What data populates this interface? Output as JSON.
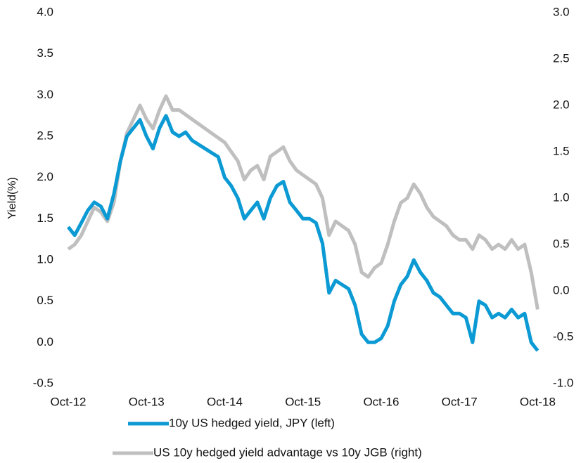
{
  "chart_data": {
    "type": "line",
    "ylabel": "Yield(%)",
    "x": [
      2012.75,
      2012.833,
      2012.917,
      2013,
      2013.083,
      2013.167,
      2013.25,
      2013.333,
      2013.417,
      2013.5,
      2013.583,
      2013.667,
      2013.75,
      2013.833,
      2013.917,
      2014,
      2014.083,
      2014.167,
      2014.25,
      2014.333,
      2014.417,
      2014.5,
      2014.583,
      2014.667,
      2014.75,
      2014.833,
      2014.917,
      2015,
      2015.083,
      2015.167,
      2015.25,
      2015.333,
      2015.417,
      2015.5,
      2015.583,
      2015.667,
      2015.75,
      2015.833,
      2015.917,
      2016,
      2016.083,
      2016.167,
      2016.25,
      2016.333,
      2016.417,
      2016.5,
      2016.583,
      2016.667,
      2016.75,
      2016.833,
      2016.917,
      2017,
      2017.083,
      2017.167,
      2017.25,
      2017.333,
      2017.417,
      2017.5,
      2017.583,
      2017.667,
      2017.75,
      2017.833,
      2017.917,
      2018,
      2018.083,
      2018.167,
      2018.25,
      2018.333,
      2018.417,
      2018.5,
      2018.583,
      2018.667,
      2018.75
    ],
    "series": [
      {
        "name": "10y US hedged yield, JPY (left)",
        "color": "#0b9ad3",
        "axis": "y",
        "values": [
          1.4,
          1.3,
          1.45,
          1.6,
          1.7,
          1.65,
          1.5,
          1.8,
          2.2,
          2.5,
          2.6,
          2.7,
          2.5,
          2.35,
          2.6,
          2.75,
          2.55,
          2.5,
          2.55,
          2.45,
          2.4,
          2.35,
          2.3,
          2.25,
          2.0,
          1.9,
          1.75,
          1.5,
          1.6,
          1.7,
          1.5,
          1.75,
          1.9,
          1.95,
          1.7,
          1.6,
          1.5,
          1.5,
          1.45,
          1.2,
          0.6,
          0.75,
          0.7,
          0.65,
          0.45,
          0.1,
          0.0,
          0.0,
          0.05,
          0.2,
          0.5,
          0.7,
          0.8,
          1.0,
          0.85,
          0.75,
          0.6,
          0.55,
          0.45,
          0.35,
          0.35,
          0.3,
          0.0,
          0.5,
          0.45,
          0.3,
          0.35,
          0.3,
          0.4,
          0.3,
          0.35,
          0.0,
          -0.1
        ]
      },
      {
        "name": "US 10y hedged yield advantage vs 10y JGB (right)",
        "color": "#bfbfbf",
        "axis": "y2",
        "values": [
          0.45,
          0.5,
          0.6,
          0.75,
          0.9,
          0.85,
          0.75,
          0.95,
          1.4,
          1.7,
          1.85,
          2.0,
          1.85,
          1.75,
          1.95,
          2.1,
          1.95,
          1.95,
          1.9,
          1.85,
          1.8,
          1.75,
          1.7,
          1.65,
          1.6,
          1.5,
          1.4,
          1.2,
          1.3,
          1.35,
          1.2,
          1.45,
          1.5,
          1.55,
          1.4,
          1.3,
          1.25,
          1.2,
          1.15,
          1.0,
          0.6,
          0.75,
          0.7,
          0.65,
          0.5,
          0.2,
          0.15,
          0.25,
          0.3,
          0.5,
          0.75,
          0.95,
          1.0,
          1.15,
          1.05,
          0.9,
          0.8,
          0.75,
          0.7,
          0.6,
          0.55,
          0.55,
          0.45,
          0.6,
          0.55,
          0.45,
          0.5,
          0.45,
          0.55,
          0.45,
          0.5,
          0.2,
          -0.2
        ]
      }
    ],
    "xlim": [
      2012.75,
      2018.8
    ],
    "xticks": [
      {
        "value": 2012.75,
        "label": "Oct-12"
      },
      {
        "value": 2013.75,
        "label": "Oct-13"
      },
      {
        "value": 2014.75,
        "label": "Oct-14"
      },
      {
        "value": 2015.75,
        "label": "Oct-15"
      },
      {
        "value": 2016.75,
        "label": "Oct-16"
      },
      {
        "value": 2017.75,
        "label": "Oct-17"
      },
      {
        "value": 2018.75,
        "label": "Oct-18"
      }
    ],
    "ylim": [
      -0.5,
      4.0
    ],
    "yticks": [
      {
        "value": -0.5,
        "label": "-0.5"
      },
      {
        "value": 0,
        "label": "0.0"
      },
      {
        "value": 0.5,
        "label": "0.5"
      },
      {
        "value": 1,
        "label": "1.0"
      },
      {
        "value": 1.5,
        "label": "1.5"
      },
      {
        "value": 2,
        "label": "2.0"
      },
      {
        "value": 2.5,
        "label": "2.5"
      },
      {
        "value": 3,
        "label": "3.0"
      },
      {
        "value": 3.5,
        "label": "3.5"
      },
      {
        "value": 4,
        "label": "4.0"
      }
    ],
    "y2lim": [
      -1.0,
      3.0
    ],
    "y2ticks": [
      {
        "value": -1,
        "label": "-1.0"
      },
      {
        "value": -0.5,
        "label": "-0.5"
      },
      {
        "value": 0,
        "label": "0.0"
      },
      {
        "value": 0.5,
        "label": "0.5"
      },
      {
        "value": 1,
        "label": "1.0"
      },
      {
        "value": 1.5,
        "label": "1.5"
      },
      {
        "value": 2,
        "label": "2.0"
      },
      {
        "value": 2.5,
        "label": "2.5"
      },
      {
        "value": 3,
        "label": "3.0"
      }
    ],
    "grid": false
  }
}
